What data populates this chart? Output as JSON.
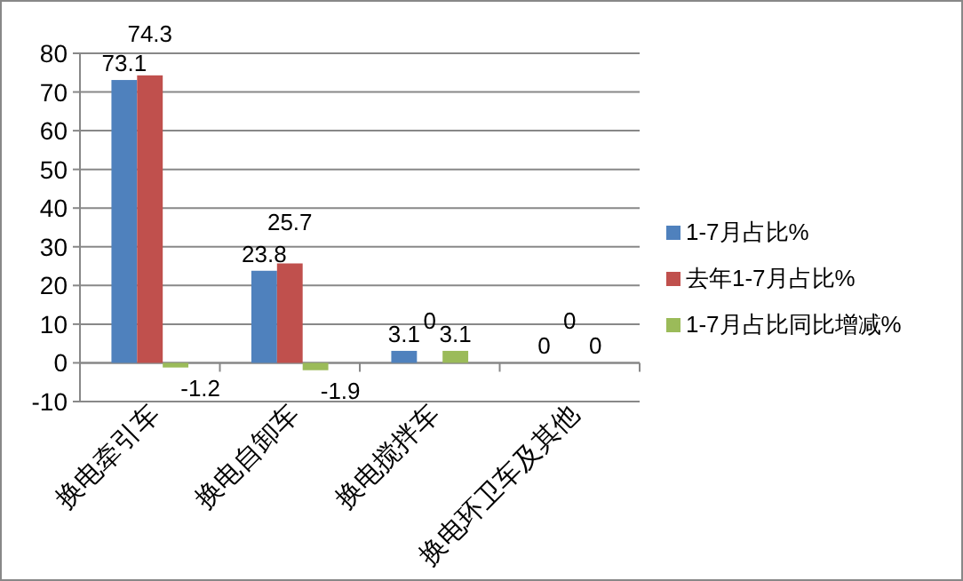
{
  "chart_data": {
    "type": "bar",
    "categories": [
      "换电牵引车",
      "换电自卸车",
      "换电搅拌车",
      "换电环卫车及其他"
    ],
    "series": [
      {
        "name": "1-7月占比%",
        "color": "#4f81bd",
        "values": [
          73.1,
          23.8,
          3.1,
          0
        ]
      },
      {
        "name": "去年1-7月占比%",
        "color": "#c0504d",
        "values": [
          74.3,
          25.7,
          0,
          0
        ]
      },
      {
        "name": "1-7月占比同比增减%",
        "color": "#9bbb59",
        "values": [
          -1.2,
          -1.9,
          3.1,
          0
        ]
      }
    ],
    "ylim": [
      -10,
      80
    ],
    "yticks": [
      -10,
      0,
      10,
      20,
      30,
      40,
      50,
      60,
      70,
      80
    ],
    "grid": "y",
    "legend": "right",
    "data_labels": true
  }
}
